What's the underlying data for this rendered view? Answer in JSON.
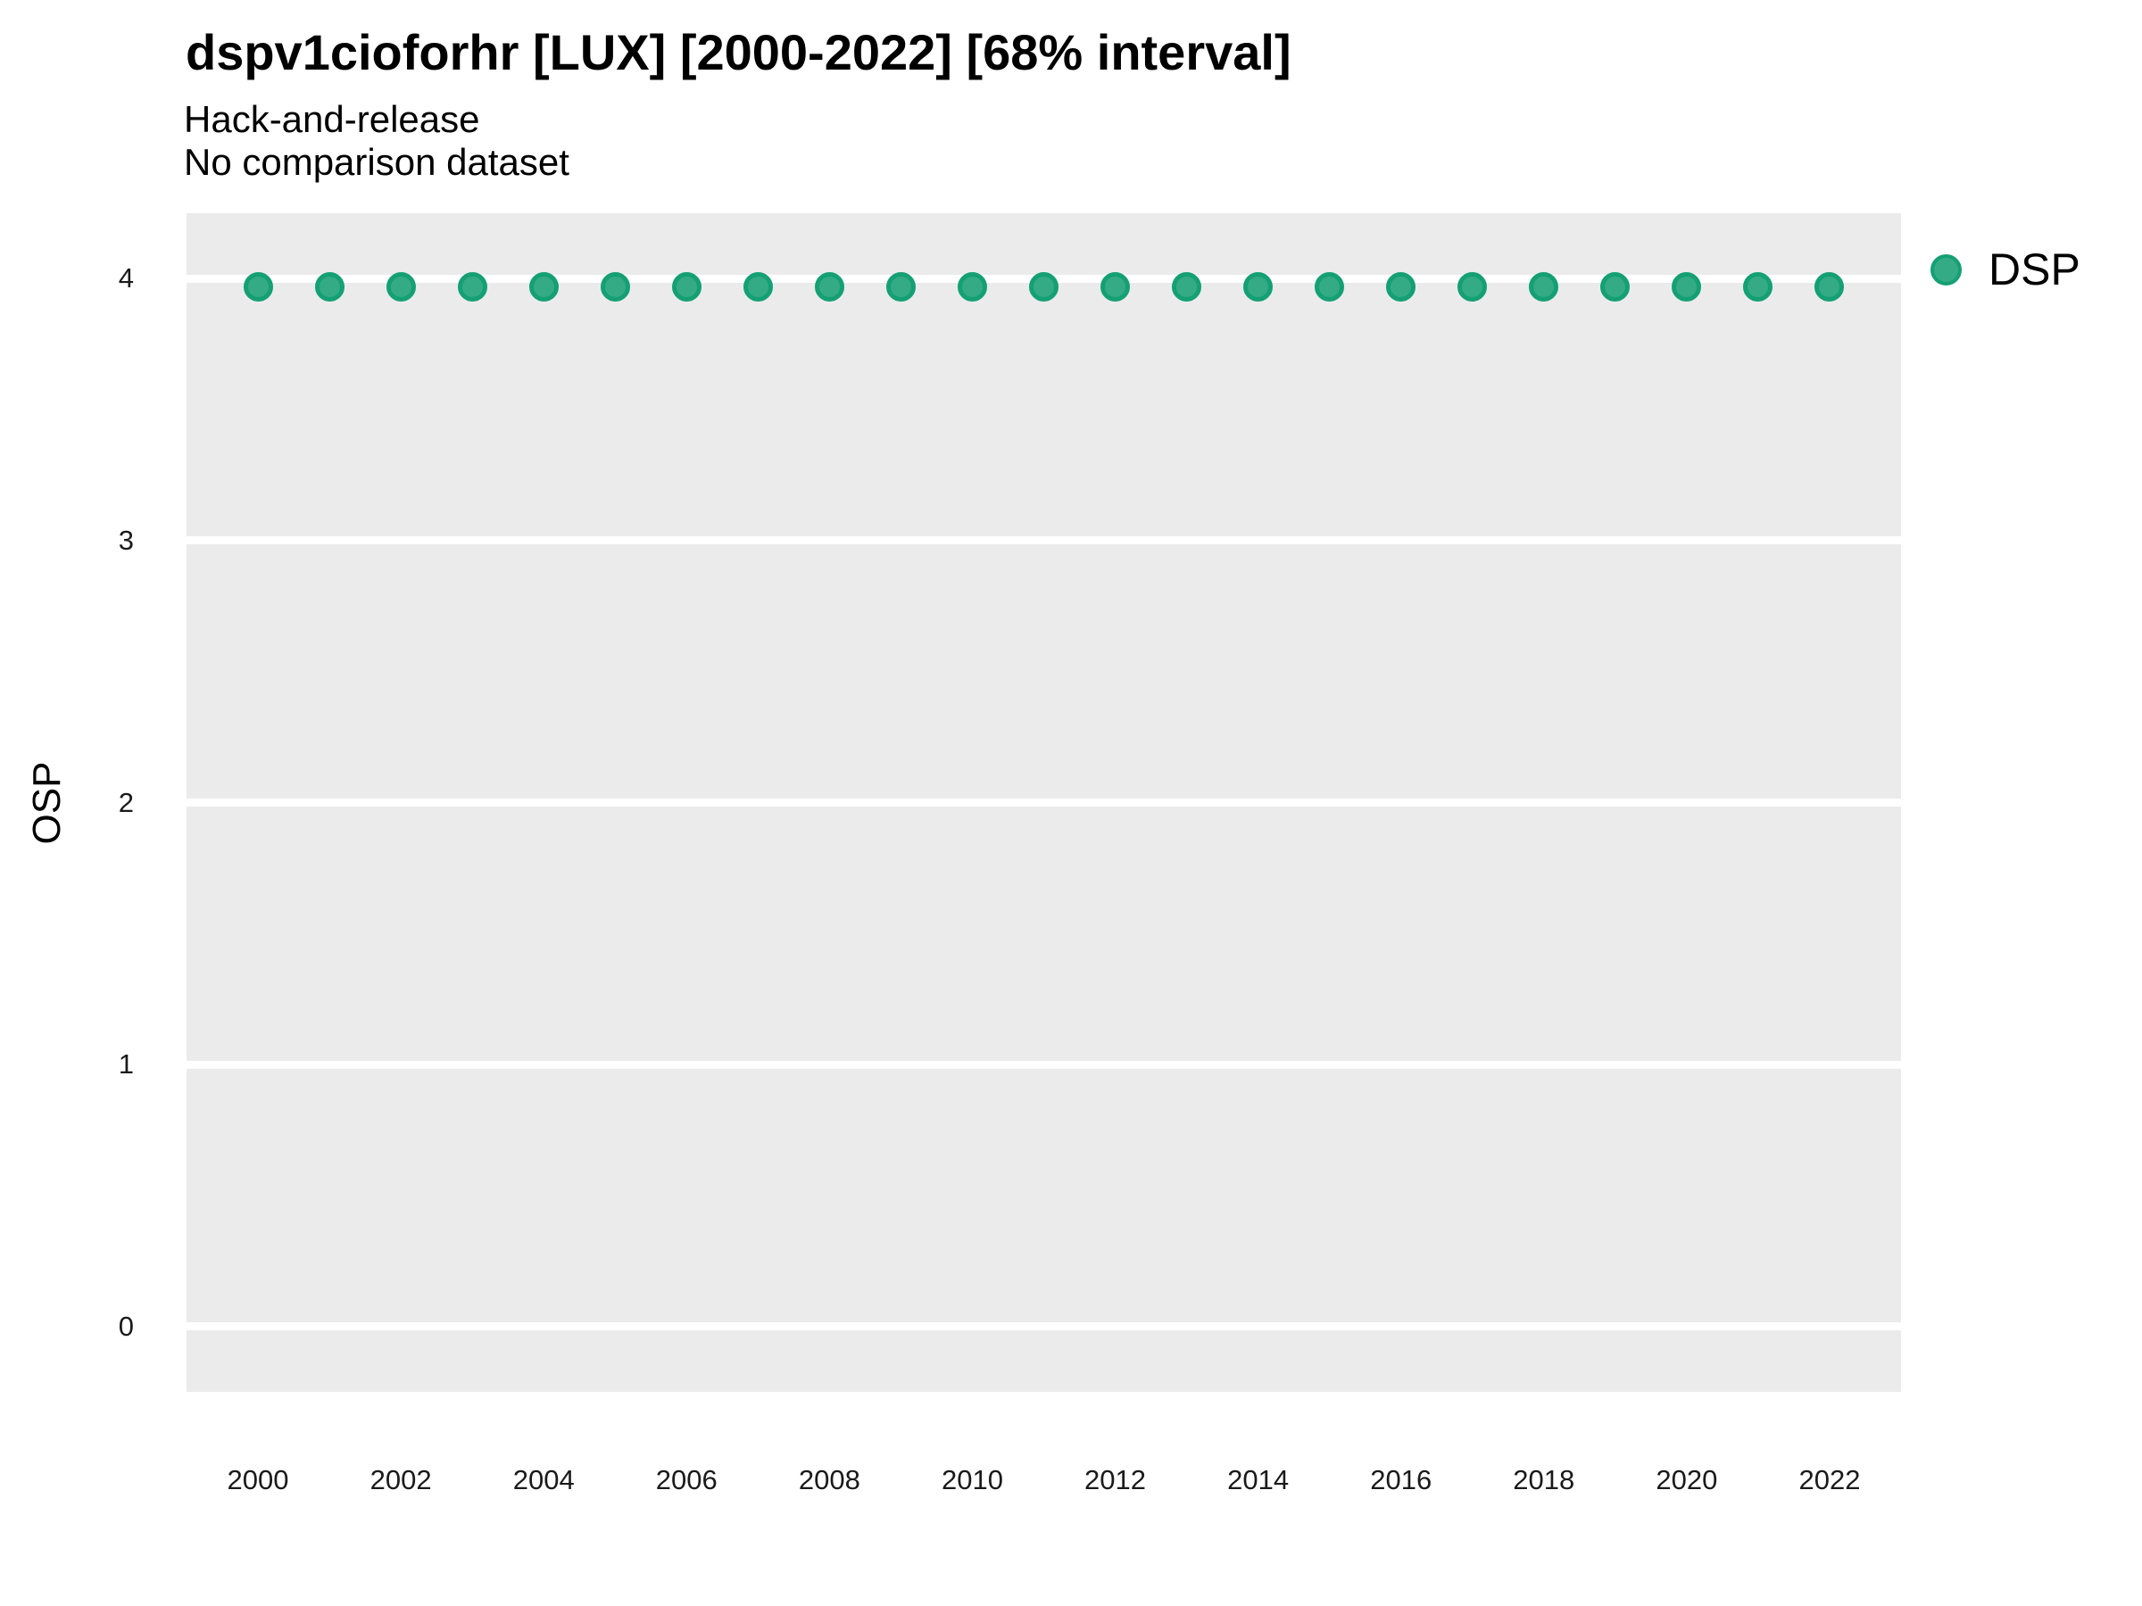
{
  "title": "dspv1cioforhr [LUX] [2000-2022] [68% interval]",
  "subtitle_line1": "Hack-and-release",
  "subtitle_line2": "No comparison dataset",
  "y_axis_label": "OSP",
  "legend": {
    "label": "DSP"
  },
  "colors": {
    "point_fill": "#34ab85",
    "point_stroke": "#14a073",
    "panel_background": "#ebebeb",
    "gridline": "#ffffff",
    "title_text": "#000000",
    "tick_text": "#1a1a1a"
  },
  "chart_data": {
    "type": "scatter",
    "title": "dspv1cioforhr [LUX] [2000-2022] [68% interval]",
    "subtitle": [
      "Hack-and-release",
      "No comparison dataset"
    ],
    "xlabel": "",
    "ylabel": "OSP",
    "x": [
      2000,
      2001,
      2002,
      2003,
      2004,
      2005,
      2006,
      2007,
      2008,
      2009,
      2010,
      2011,
      2012,
      2013,
      2014,
      2015,
      2016,
      2017,
      2018,
      2019,
      2020,
      2021,
      2022
    ],
    "series": [
      {
        "name": "DSP",
        "values": [
          3.97,
          3.97,
          3.97,
          3.97,
          3.97,
          3.97,
          3.97,
          3.97,
          3.97,
          3.97,
          3.97,
          3.97,
          3.97,
          3.97,
          3.97,
          3.97,
          3.97,
          3.97,
          3.97,
          3.97,
          3.97,
          3.97,
          3.97
        ]
      }
    ],
    "xlim": [
      1999,
      2023
    ],
    "ylim": [
      -0.25,
      4.25
    ],
    "xticks": [
      2000,
      2002,
      2004,
      2006,
      2008,
      2010,
      2012,
      2014,
      2016,
      2018,
      2020,
      2022
    ],
    "yticks": [
      0,
      1,
      2,
      3,
      4
    ],
    "grid": "major-horizontal-white",
    "legend_position": "right-top"
  }
}
